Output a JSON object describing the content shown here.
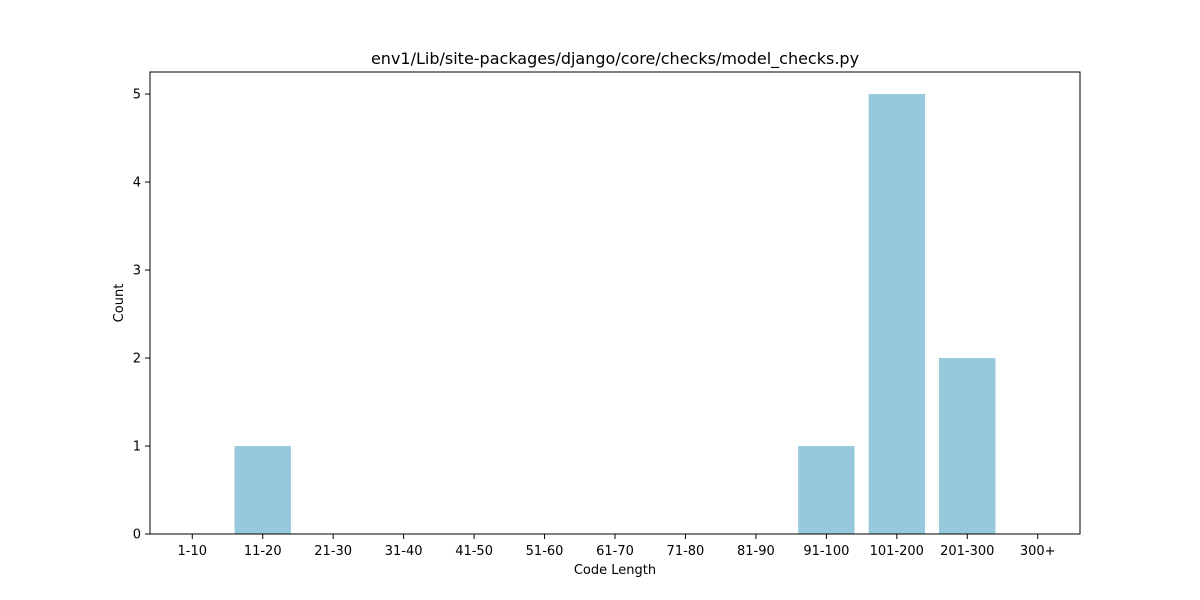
{
  "chart_data": {
    "type": "bar",
    "title": "env1/Lib/site-packages/django/core/checks/model_checks.py",
    "xlabel": "Code Length",
    "ylabel": "Count",
    "categories": [
      "1-10",
      "11-20",
      "21-30",
      "31-40",
      "41-50",
      "51-60",
      "61-70",
      "71-80",
      "81-90",
      "91-100",
      "101-200",
      "201-300",
      "300+"
    ],
    "values": [
      0,
      1,
      0,
      0,
      0,
      0,
      0,
      0,
      0,
      1,
      5,
      2,
      0
    ],
    "ylim": [
      0,
      5.25
    ],
    "yticks": [
      0,
      1,
      2,
      3,
      4,
      5
    ],
    "grid": false,
    "bar_color": "#96c9dc",
    "axis_color": "#000000",
    "background_color": "#ffffff"
  }
}
